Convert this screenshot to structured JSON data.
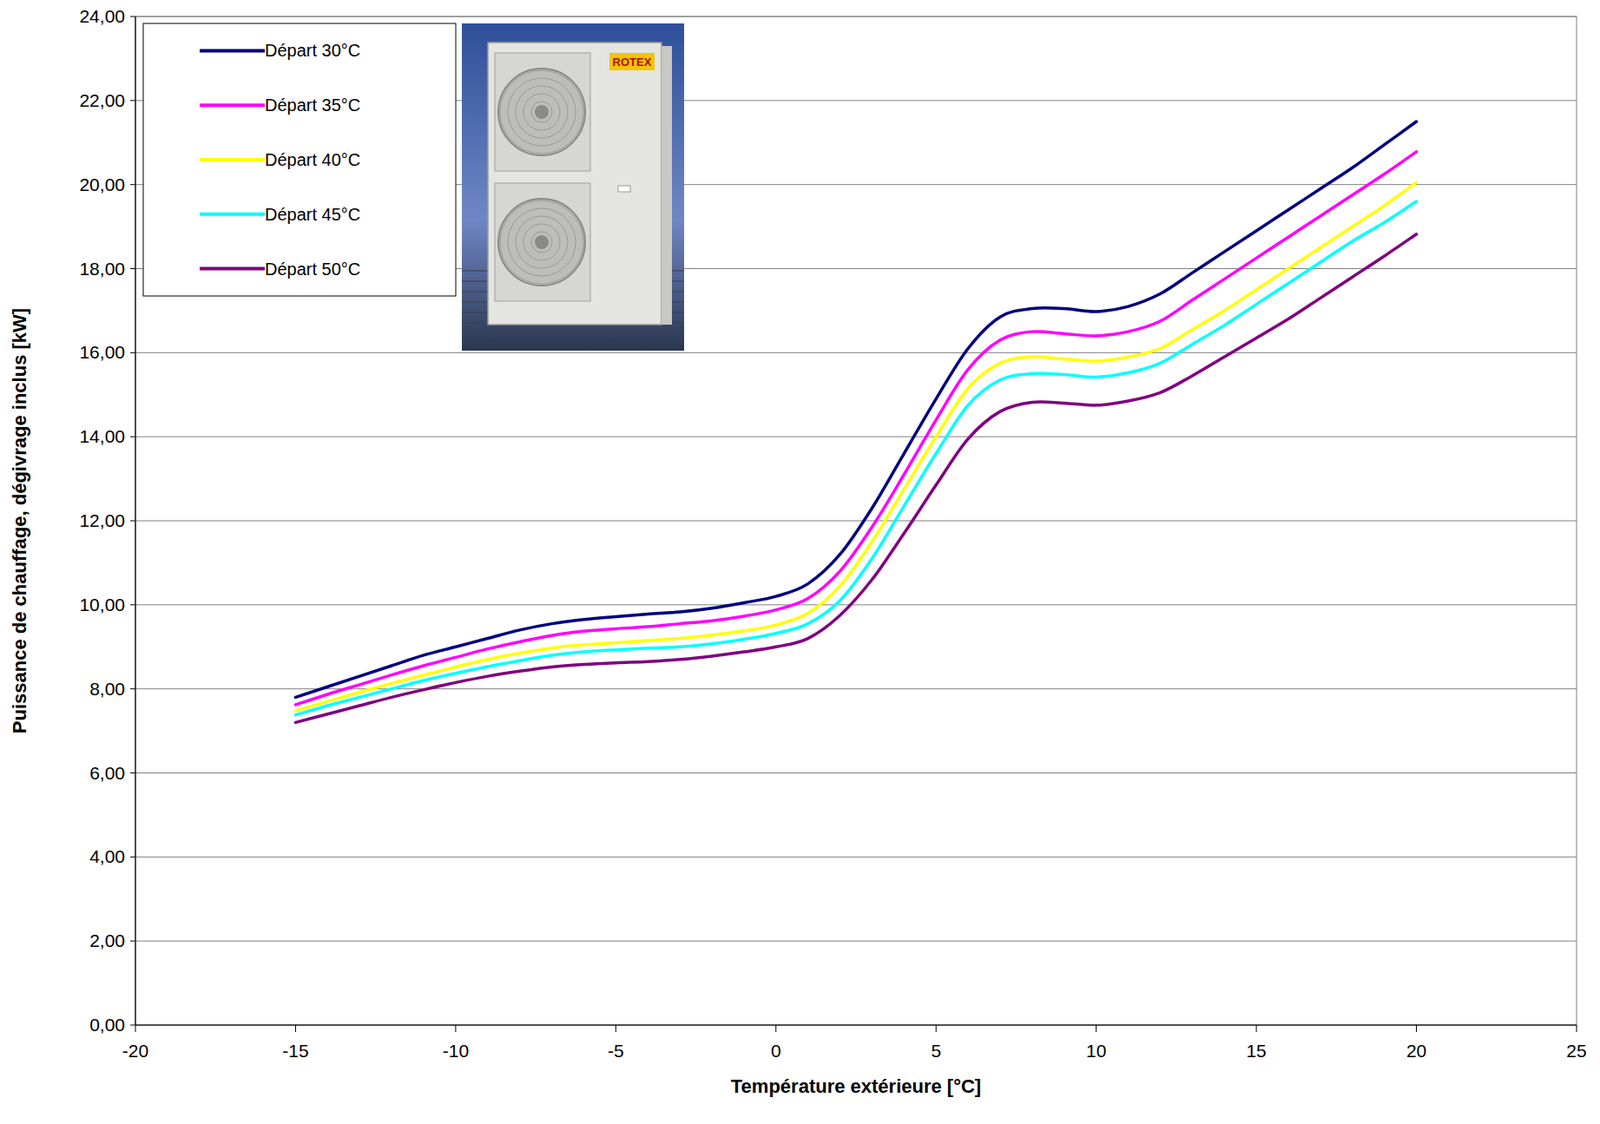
{
  "chart_data": {
    "type": "line",
    "x_label": "Température extérieure [°C]",
    "y_label": "Puissance de chauffage, dégivrage inclus [kW]",
    "x": [
      -15,
      -14,
      -13,
      -12,
      -11,
      -10,
      -9,
      -8,
      -7,
      -6,
      -5,
      -4,
      -3,
      -2,
      -1,
      0,
      1,
      2,
      3,
      4,
      5,
      6,
      7,
      8,
      9,
      10,
      11,
      12,
      13,
      14,
      15,
      16,
      17,
      18,
      19,
      20
    ],
    "series": [
      {
        "name": "Départ 30°C",
        "color": "#000080",
        "values": [
          7.8,
          8.05,
          8.3,
          8.55,
          8.8,
          9.0,
          9.2,
          9.4,
          9.55,
          9.65,
          9.72,
          9.78,
          9.83,
          9.92,
          10.05,
          10.2,
          10.5,
          11.2,
          12.3,
          13.6,
          14.9,
          16.1,
          16.85,
          17.05,
          17.05,
          16.98,
          17.1,
          17.4,
          17.9,
          18.4,
          18.9,
          19.4,
          19.9,
          20.4,
          20.95,
          21.5
        ]
      },
      {
        "name": "Départ 35°C",
        "color": "#ff00ff",
        "values": [
          7.62,
          7.87,
          8.1,
          8.33,
          8.55,
          8.75,
          8.95,
          9.12,
          9.27,
          9.37,
          9.43,
          9.48,
          9.55,
          9.62,
          9.73,
          9.88,
          10.15,
          10.8,
          11.85,
          13.1,
          14.4,
          15.6,
          16.3,
          16.5,
          16.45,
          16.4,
          16.5,
          16.75,
          17.25,
          17.75,
          18.25,
          18.75,
          19.25,
          19.75,
          20.25,
          20.78
        ]
      },
      {
        "name": "Départ 40°C",
        "color": "#ffff00",
        "values": [
          7.48,
          7.7,
          7.92,
          8.13,
          8.33,
          8.52,
          8.7,
          8.85,
          8.97,
          9.05,
          9.1,
          9.15,
          9.2,
          9.28,
          9.38,
          9.52,
          9.8,
          10.45,
          11.5,
          12.75,
          14.0,
          15.15,
          15.75,
          15.9,
          15.85,
          15.8,
          15.9,
          16.1,
          16.55,
          17.0,
          17.5,
          18.0,
          18.5,
          19.0,
          19.5,
          20.05
        ]
      },
      {
        "name": "Départ 45°C",
        "color": "#00ffff",
        "values": [
          7.38,
          7.6,
          7.8,
          8.0,
          8.2,
          8.37,
          8.53,
          8.67,
          8.8,
          8.88,
          8.93,
          8.97,
          9.0,
          9.07,
          9.18,
          9.32,
          9.55,
          10.1,
          11.1,
          12.35,
          13.6,
          14.75,
          15.35,
          15.5,
          15.48,
          15.42,
          15.52,
          15.75,
          16.2,
          16.65,
          17.15,
          17.65,
          18.15,
          18.65,
          19.1,
          19.6
        ]
      },
      {
        "name": "Départ 50°C",
        "color": "#800080",
        "values": [
          7.2,
          7.4,
          7.6,
          7.8,
          7.98,
          8.15,
          8.3,
          8.42,
          8.52,
          8.58,
          8.62,
          8.65,
          8.7,
          8.78,
          8.88,
          9.0,
          9.2,
          9.75,
          10.6,
          11.7,
          12.85,
          13.95,
          14.6,
          14.82,
          14.8,
          14.75,
          14.85,
          15.05,
          15.45,
          15.9,
          16.35,
          16.8,
          17.3,
          17.8,
          18.3,
          18.82
        ]
      }
    ],
    "xlim": [
      -20,
      25
    ],
    "xticks": [
      -20,
      -15,
      -10,
      -5,
      0,
      5,
      10,
      15,
      20,
      25
    ],
    "ylim": [
      0,
      24
    ],
    "yticks": [
      {
        "value": 0,
        "label": "0,00"
      },
      {
        "value": 2,
        "label": "2,00"
      },
      {
        "value": 4,
        "label": "4,00"
      },
      {
        "value": 6,
        "label": "6,00"
      },
      {
        "value": 8,
        "label": "8,00"
      },
      {
        "value": 10,
        "label": "10,00"
      },
      {
        "value": 12,
        "label": "12,00"
      },
      {
        "value": 14,
        "label": "14,00"
      },
      {
        "value": 16,
        "label": "16,00"
      },
      {
        "value": 18,
        "label": "18,00"
      },
      {
        "value": 20,
        "label": "20,00"
      },
      {
        "value": 22,
        "label": "22,00"
      },
      {
        "value": 24,
        "label": "24,00"
      }
    ],
    "grid": true,
    "legend": "top-left",
    "annotations": [
      {
        "text": "ROTEX"
      }
    ]
  }
}
